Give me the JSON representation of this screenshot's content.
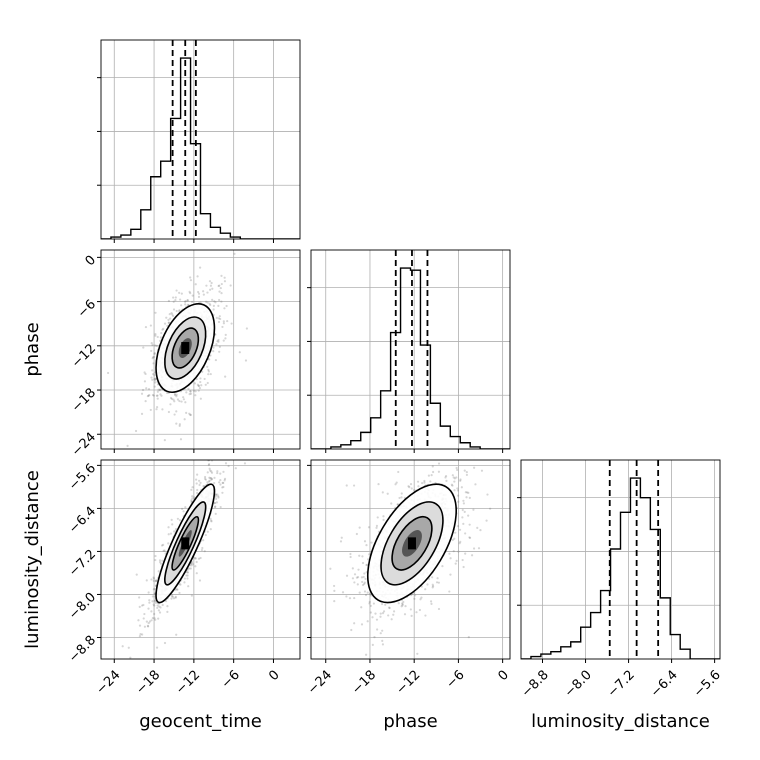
{
  "chart_data": {
    "type": "corner",
    "parameters": [
      "geocent_time",
      "phase",
      "luminosity_distance"
    ],
    "axis_labels": {
      "geocent_time": "geocent_time",
      "phase": "phase",
      "luminosity_distance": "luminosity_distance"
    },
    "ranges": {
      "geocent_time": [
        -26,
        4
      ],
      "phase": [
        -26,
        1
      ],
      "luminosity_distance": [
        -9.2,
        -5.5
      ]
    },
    "ticks": {
      "geocent_time": [
        -24,
        -18,
        -12,
        -6,
        0
      ],
      "phase": [
        -24,
        -18,
        -12,
        -6,
        0
      ],
      "luminosity_distance": [
        -8.8,
        -8.0,
        -7.2,
        -6.4,
        -5.6
      ]
    },
    "tick_labels": {
      "geocent_time": [
        "−24",
        "−18",
        "−12",
        "−6",
        "0"
      ],
      "phase": [
        "−24",
        "−18",
        "−12",
        "−6",
        "0"
      ],
      "luminosity_distance": [
        "−8.8",
        "−8.0",
        "−7.2",
        "−6.4",
        "−5.6"
      ]
    },
    "quantiles": {
      "geocent_time": [
        -15.2,
        -13.3,
        -11.7
      ],
      "phase": [
        -14.5,
        -12.3,
        -10.2
      ],
      "luminosity_distance": [
        -7.55,
        -7.05,
        -6.65
      ]
    },
    "histograms": {
      "geocent_time": {
        "bins": [
          -26,
          -24.5,
          -23,
          -21.5,
          -20,
          -18.5,
          -17,
          -15.5,
          -14,
          -12.5,
          -11,
          -9.5,
          -8,
          -6.5,
          -5,
          -3.5,
          -2,
          -0.5,
          1,
          2.5,
          4
        ],
        "counts": [
          0,
          1,
          2,
          5,
          15,
          32,
          40,
          62,
          93,
          49,
          13,
          6,
          3,
          1,
          0,
          0,
          0,
          0,
          0,
          0
        ]
      },
      "phase": {
        "bins": [
          -26,
          -24.65,
          -23.3,
          -21.95,
          -20.6,
          -19.25,
          -17.9,
          -16.55,
          -15.2,
          -13.85,
          -12.5,
          -11.15,
          -9.8,
          -8.45,
          -7.1,
          -5.75,
          -4.4,
          -3.05,
          -1.7,
          -0.35,
          1
        ],
        "counts": [
          0,
          0,
          1,
          2,
          4,
          8,
          15,
          28,
          56,
          87,
          86,
          50,
          22,
          11,
          6,
          3,
          1,
          0,
          0,
          0
        ]
      },
      "luminosity_distance": {
        "bins": [
          -9.2,
          -9.015,
          -8.83,
          -8.645,
          -8.46,
          -8.275,
          -8.09,
          -7.905,
          -7.72,
          -7.535,
          -7.35,
          -7.165,
          -6.98,
          -6.795,
          -6.61,
          -6.425,
          -6.24,
          -6.055,
          -5.87,
          -5.685,
          -5.5
        ],
        "counts": [
          0,
          1,
          2,
          3,
          5,
          7,
          13,
          19,
          28,
          45,
          60,
          74,
          66,
          53,
          25,
          10,
          4,
          0,
          0,
          0
        ]
      }
    },
    "joint": [
      {
        "x": "geocent_time",
        "y": "phase",
        "mean": [
          -13.3,
          -12.3
        ],
        "sd": [
          2.2,
          3.0
        ],
        "rho": 0.45
      },
      {
        "x": "geocent_time",
        "y": "luminosity_distance",
        "mean": [
          -13.3,
          -7.05
        ],
        "sd": [
          2.2,
          0.55
        ],
        "rho": 0.88
      },
      {
        "x": "phase",
        "y": "luminosity_distance",
        "mean": [
          -12.3,
          -7.05
        ],
        "sd": [
          3.0,
          0.55
        ],
        "rho": 0.55
      }
    ],
    "grid": true
  }
}
